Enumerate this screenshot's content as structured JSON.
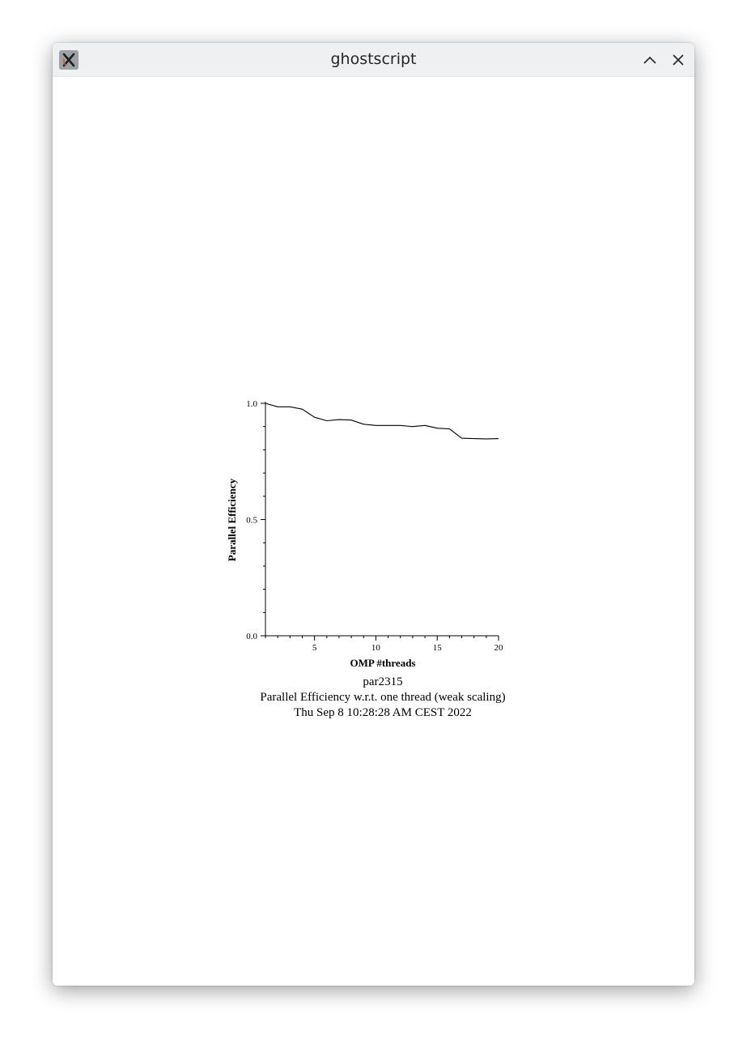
{
  "window": {
    "title": "ghostscript"
  },
  "icons": {
    "app": "ghostscript-x-icon",
    "maximize": "chevron-up-icon",
    "close": "close-icon"
  },
  "colors": {
    "titlebar": "#eff0f1",
    "line": "#000000"
  },
  "captions": {
    "line1": "par2315",
    "line2": "Parallel Efficiency w.r.t. one thread (weak scaling)",
    "line3": "Thu Sep  8 10:28:28 AM CEST 2022"
  },
  "chart_data": {
    "type": "line",
    "title": "",
    "xlabel": "OMP #threads",
    "ylabel": "Parallel Efficiency",
    "xlim": [
      1,
      20
    ],
    "ylim": [
      0.0,
      1.0
    ],
    "x_ticks": [
      5,
      10,
      15,
      20
    ],
    "y_ticks": [
      0.0,
      0.5,
      1.0
    ],
    "x_tick_labels": [
      "5",
      "10",
      "15",
      "20"
    ],
    "y_tick_labels": [
      "0.0",
      "0.5",
      "1.0"
    ],
    "grid": false,
    "series": [
      {
        "x": [
          1,
          2,
          3,
          4,
          5,
          6,
          7,
          8,
          9,
          10,
          11,
          12,
          13,
          14,
          15,
          16,
          17,
          18,
          19,
          20
        ],
        "values": [
          1.0,
          0.985,
          0.985,
          0.975,
          0.94,
          0.925,
          0.93,
          0.928,
          0.91,
          0.905,
          0.905,
          0.905,
          0.9,
          0.905,
          0.893,
          0.89,
          0.85,
          0.848,
          0.847,
          0.848
        ]
      }
    ]
  }
}
